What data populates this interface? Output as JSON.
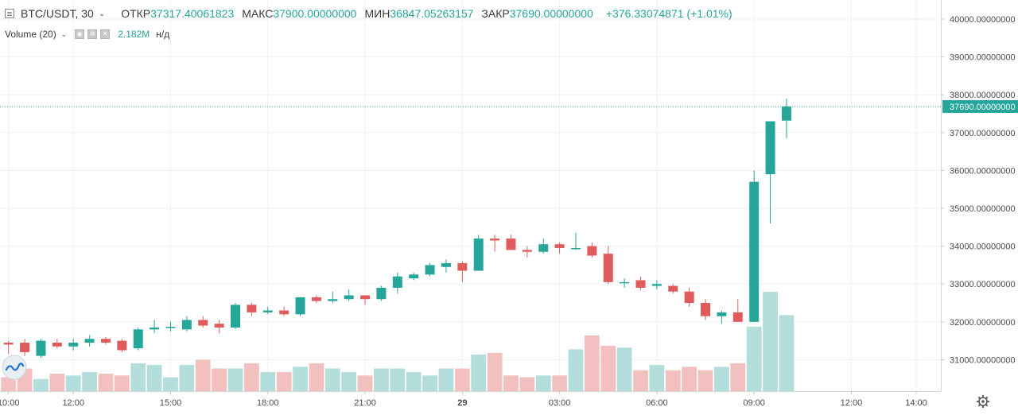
{
  "legend": {
    "symbol": "BTC/USDT, 30",
    "open_label": "ОТКР",
    "open_value": "37317.40061823",
    "high_label": "МАКС",
    "high_value": "37900.00000000",
    "low_label": "МИН",
    "low_value": "36847.05263157",
    "close_label": "ЗАКР",
    "close_value": "37690.00000000",
    "change": "+376.33074871 (+1.01%)",
    "volume_label": "Volume (20)",
    "volume_value": "2.182M",
    "volume_na": "н/д"
  },
  "last_price_label": "37690.00000000",
  "colors": {
    "up": "#26a69a",
    "down": "#e05c5c",
    "vol_up": "#b3dedb",
    "vol_down": "#f3c0c0",
    "grid": "#eef1f4",
    "axis_text": "#4a4a4a",
    "price_line": "#26a69a"
  },
  "icons": {
    "settings": "gear-icon",
    "logo": "tradingview-logo-icon"
  },
  "chart_data": {
    "type": "candlestick",
    "title": "BTC/USDT, 30",
    "y_ticks": [
      "40000.00000000",
      "39000.00000000",
      "38000.00000000",
      "37000.00000000",
      "36000.00000000",
      "35000.00000000",
      "34000.00000000",
      "33000.00000000",
      "32000.00000000",
      "31000.00000000"
    ],
    "y_tick_values": [
      40000,
      39000,
      38000,
      37000,
      36000,
      35000,
      34000,
      33000,
      32000,
      31000
    ],
    "ylim": [
      30200,
      40300
    ],
    "x_tick_labels": [
      "10:00",
      "12:00",
      "15:00",
      "18:00",
      "21:00",
      "29",
      "03:00",
      "06:00",
      "09:00",
      "12:00",
      "14:00"
    ],
    "x_tick_slots": [
      0.5,
      4.5,
      10.5,
      16.5,
      22.5,
      28.5,
      34.5,
      40.5,
      46.5,
      52.5,
      56.5
    ],
    "grid": true,
    "candles": [
      {
        "o": 31450,
        "h": 31500,
        "l": 31150,
        "c": 31400
      },
      {
        "o": 31450,
        "h": 31550,
        "l": 31100,
        "c": 31200
      },
      {
        "o": 31100,
        "h": 31550,
        "l": 31050,
        "c": 31500
      },
      {
        "o": 31450,
        "h": 31550,
        "l": 31300,
        "c": 31350
      },
      {
        "o": 31350,
        "h": 31550,
        "l": 31250,
        "c": 31450
      },
      {
        "o": 31450,
        "h": 31650,
        "l": 31350,
        "c": 31550
      },
      {
        "o": 31550,
        "h": 31600,
        "l": 31400,
        "c": 31450
      },
      {
        "o": 31500,
        "h": 31550,
        "l": 31200,
        "c": 31250
      },
      {
        "o": 31300,
        "h": 31850,
        "l": 31250,
        "c": 31800
      },
      {
        "o": 31800,
        "h": 32050,
        "l": 31700,
        "c": 31850
      },
      {
        "o": 31850,
        "h": 32000,
        "l": 31750,
        "c": 31870
      },
      {
        "o": 31800,
        "h": 32150,
        "l": 31750,
        "c": 32050
      },
      {
        "o": 32050,
        "h": 32150,
        "l": 31850,
        "c": 31900
      },
      {
        "o": 31950,
        "h": 32050,
        "l": 31700,
        "c": 31850
      },
      {
        "o": 31850,
        "h": 32500,
        "l": 31800,
        "c": 32450
      },
      {
        "o": 32450,
        "h": 32500,
        "l": 32150,
        "c": 32250
      },
      {
        "o": 32250,
        "h": 32400,
        "l": 32200,
        "c": 32300
      },
      {
        "o": 32300,
        "h": 32400,
        "l": 32150,
        "c": 32200
      },
      {
        "o": 32200,
        "h": 32650,
        "l": 32150,
        "c": 32650
      },
      {
        "o": 32650,
        "h": 32700,
        "l": 32500,
        "c": 32550
      },
      {
        "o": 32550,
        "h": 32800,
        "l": 32500,
        "c": 32600
      },
      {
        "o": 32600,
        "h": 32850,
        "l": 32550,
        "c": 32700
      },
      {
        "o": 32700,
        "h": 32700,
        "l": 32450,
        "c": 32600
      },
      {
        "o": 32600,
        "h": 32950,
        "l": 32550,
        "c": 32900
      },
      {
        "o": 32900,
        "h": 33300,
        "l": 32750,
        "c": 33200
      },
      {
        "o": 33150,
        "h": 33300,
        "l": 33100,
        "c": 33250
      },
      {
        "o": 33250,
        "h": 33550,
        "l": 33200,
        "c": 33500
      },
      {
        "o": 33450,
        "h": 33650,
        "l": 33300,
        "c": 33550
      },
      {
        "o": 33550,
        "h": 33600,
        "l": 33050,
        "c": 33350
      },
      {
        "o": 33350,
        "h": 34300,
        "l": 33350,
        "c": 34200
      },
      {
        "o": 34200,
        "h": 34300,
        "l": 33850,
        "c": 34150
      },
      {
        "o": 34200,
        "h": 34300,
        "l": 33900,
        "c": 33900
      },
      {
        "o": 33900,
        "h": 34000,
        "l": 33700,
        "c": 33850
      },
      {
        "o": 33850,
        "h": 34200,
        "l": 33800,
        "c": 34050
      },
      {
        "o": 34050,
        "h": 34100,
        "l": 33800,
        "c": 33950
      },
      {
        "o": 33950,
        "h": 34350,
        "l": 33900,
        "c": 33950
      },
      {
        "o": 34000,
        "h": 34100,
        "l": 33700,
        "c": 33750
      },
      {
        "o": 33800,
        "h": 34000,
        "l": 33000,
        "c": 33050
      },
      {
        "o": 33050,
        "h": 33150,
        "l": 32900,
        "c": 33050
      },
      {
        "o": 33100,
        "h": 33200,
        "l": 32850,
        "c": 32900
      },
      {
        "o": 32950,
        "h": 33100,
        "l": 32850,
        "c": 33000
      },
      {
        "o": 32950,
        "h": 33000,
        "l": 32750,
        "c": 32800
      },
      {
        "o": 32800,
        "h": 32900,
        "l": 32400,
        "c": 32500
      },
      {
        "o": 32500,
        "h": 32600,
        "l": 32050,
        "c": 32150
      },
      {
        "o": 32150,
        "h": 32300,
        "l": 31950,
        "c": 32250
      },
      {
        "o": 32250,
        "h": 32600,
        "l": 32000,
        "c": 32000
      },
      {
        "o": 32000,
        "h": 36000,
        "l": 32000,
        "c": 35700
      },
      {
        "o": 35900,
        "h": 37300,
        "l": 34600,
        "c": 37300
      },
      {
        "o": 37317.40061823,
        "h": 37900,
        "l": 36847.05263157,
        "c": 37690
      }
    ],
    "volumes": [
      400,
      650,
      350,
      500,
      450,
      550,
      500,
      450,
      800,
      750,
      400,
      750,
      900,
      650,
      650,
      800,
      550,
      550,
      700,
      800,
      650,
      550,
      450,
      650,
      650,
      550,
      450,
      650,
      650,
      1050,
      1100,
      450,
      400,
      450,
      450,
      1200,
      1600,
      1300,
      1250,
      600,
      750,
      600,
      700,
      600,
      700,
      800,
      1850,
      2850,
      2182
    ]
  }
}
